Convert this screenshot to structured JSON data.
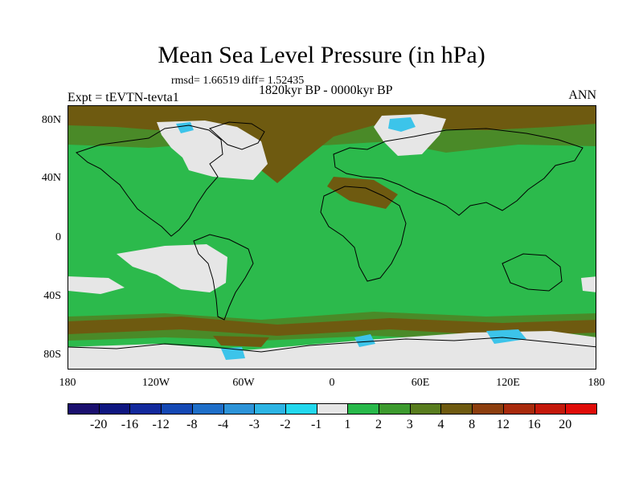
{
  "title": "Mean Sea Level Pressure (in hPa)",
  "stats": "rmsd= 1.66519 diff= 1.52435",
  "subtitle": "1820kyr BP - 0000kyr BP",
  "experiment": "Expt = tEVTN-tevta1",
  "season": "ANN",
  "lat_ticks": [
    "80N",
    "40N",
    "0",
    "40S",
    "80S"
  ],
  "lon_ticks": [
    "180",
    "120W",
    "60W",
    "0",
    "60E",
    "120E",
    "180"
  ],
  "colorbar": {
    "colors": [
      "#1a0f6e",
      "#0e1680",
      "#12299c",
      "#1448b4",
      "#1e6ec8",
      "#2c93d8",
      "#2cb4e4",
      "#22d8ee",
      "#e6e6e6",
      "#28b84a",
      "#3c9a2e",
      "#587c1e",
      "#6e5a10",
      "#8c3e0e",
      "#a82a0c",
      "#c4180a",
      "#e00c08"
    ],
    "labels": [
      "-20",
      "-16",
      "-12",
      "-8",
      "-4",
      "-3",
      "-2",
      "-1",
      "1",
      "2",
      "3",
      "4",
      "8",
      "12",
      "16",
      "20"
    ]
  },
  "map_colors": {
    "base": "#2cba4c",
    "brown": "#6e5a10",
    "darkgreen": "#4a8a28",
    "white": "#e6e6e6",
    "cyan": "#3cc4ea",
    "coast": "#000000"
  }
}
